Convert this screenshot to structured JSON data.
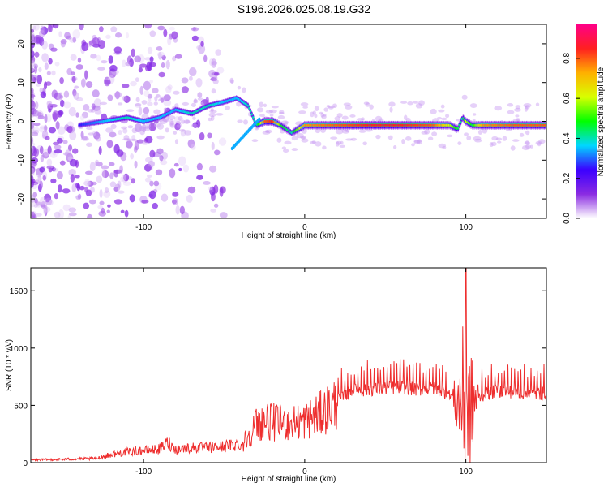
{
  "title": "S196.2026.025.08.19.G32",
  "colors": {
    "snr_line": "#ee2e2e",
    "axis": "#000000",
    "colormap": [
      "#ffffff",
      "#8a2be2",
      "#3b00ff",
      "#00d7ff",
      "#00ff00",
      "#d8ff00",
      "#ffb000",
      "#ff2020",
      "#ff0088"
    ]
  },
  "chart_data": [
    {
      "type": "heatmap",
      "xlabel": "Height of straight line (km)",
      "ylabel": "Frequency (Hz)",
      "xlim": [
        -170,
        150
      ],
      "ylim": [
        -25,
        25
      ],
      "xticks": [
        -100,
        0,
        100
      ],
      "yticks": [
        -20,
        -10,
        0,
        10,
        20
      ],
      "colorbar": {
        "label": "Normalized spectral amplitude",
        "range": [
          0,
          0.97
        ],
        "ticks": [
          0.0,
          0.2,
          0.4,
          0.6,
          0.8
        ]
      },
      "ridge": {
        "x": [
          -140,
          -125,
          -110,
          -100,
          -90,
          -80,
          -70,
          -60,
          -50,
          -42,
          -35,
          -30,
          -25,
          -20,
          -15,
          -8,
          0,
          20,
          40,
          60,
          80,
          90,
          95,
          98,
          100,
          104,
          110,
          130,
          150
        ],
        "y": [
          -1,
          0,
          1,
          0,
          1,
          3,
          2,
          4,
          5,
          6,
          4,
          -1,
          0,
          0,
          -1,
          -3,
          -1,
          -1,
          -1,
          -1,
          -1,
          -1,
          -2,
          1,
          0,
          -1,
          -1,
          -1,
          -1
        ],
        "amplitude": [
          0.25,
          0.35,
          0.4,
          0.35,
          0.35,
          0.35,
          0.4,
          0.4,
          0.35,
          0.35,
          0.4,
          0.4,
          0.8,
          0.85,
          0.5,
          0.4,
          0.75,
          0.8,
          0.85,
          0.85,
          0.8,
          0.6,
          0.45,
          0.4,
          0.6,
          0.45,
          0.75,
          0.8,
          0.8
        ]
      }
    },
    {
      "type": "line",
      "xlabel": "Height of straight line (km)",
      "ylabel": "SNR (10 * v/v)",
      "xlim": [
        -170,
        150
      ],
      "ylim": [
        0,
        1700
      ],
      "xticks": [
        -100,
        0,
        100
      ],
      "yticks": [
        0,
        500,
        1000,
        1500
      ],
      "series": [
        {
          "x": [
            -170,
            -150,
            -130,
            -120,
            -110,
            -100,
            -90,
            -85,
            -80,
            -70,
            -60,
            -50,
            -40,
            -35,
            -30,
            -25,
            -20,
            -10,
            0,
            10,
            20,
            30,
            40,
            50,
            60,
            70,
            80,
            85,
            90,
            95,
            98,
            100,
            102,
            104,
            106,
            110,
            120,
            130,
            140,
            150
          ],
          "values": [
            20,
            25,
            30,
            60,
            80,
            90,
            100,
            150,
            100,
            110,
            110,
            120,
            140,
            250,
            350,
            380,
            370,
            360,
            380,
            450,
            550,
            640,
            650,
            660,
            670,
            650,
            660,
            640,
            600,
            520,
            560,
            500,
            420,
            480,
            560,
            600,
            640,
            630,
            610,
            620
          ]
        }
      ]
    }
  ]
}
